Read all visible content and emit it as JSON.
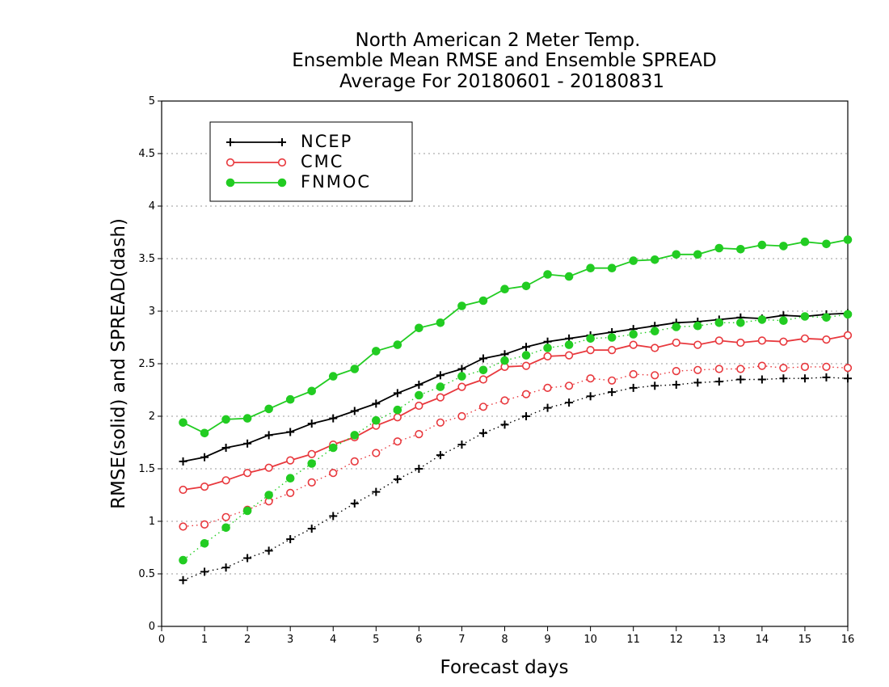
{
  "chart_data": {
    "type": "line",
    "title": [
      "North American 2 Meter Temp.",
      "Ensemble Mean RMSE and Ensemble SPREAD",
      "Average For 20180601 - 20180831"
    ],
    "xlabel": "Forecast days",
    "ylabel": "RMSE(solid) and SPREAD(dash)",
    "xlim": [
      0,
      16
    ],
    "ylim": [
      0,
      5
    ],
    "xticks": [
      "0",
      "1",
      "2",
      "3",
      "4",
      "5",
      "6",
      "7",
      "8",
      "9",
      "10",
      "11",
      "12",
      "13",
      "14",
      "15",
      "16"
    ],
    "yticks": [
      "0",
      "0.5",
      "1",
      "1.5",
      "2",
      "2.5",
      "3",
      "3.5",
      "4",
      "4.5",
      "5"
    ],
    "grid": "horizontal dotted",
    "legend_position": "top-left",
    "x": [
      0.5,
      1,
      1.5,
      2,
      2.5,
      3,
      3.5,
      4,
      4.5,
      5,
      5.5,
      6,
      6.5,
      7,
      7.5,
      8,
      8.5,
      9,
      9.5,
      10,
      10.5,
      11,
      11.5,
      12,
      12.5,
      13,
      13.5,
      14,
      14.5,
      15,
      15.5,
      16
    ],
    "series": [
      {
        "name": "NCEP",
        "metric": "RMSE",
        "line": "solid",
        "color": "#000000",
        "marker": "plus",
        "values": [
          1.57,
          1.61,
          1.7,
          1.74,
          1.82,
          1.85,
          1.93,
          1.98,
          2.05,
          2.12,
          2.22,
          2.3,
          2.39,
          2.45,
          2.55,
          2.59,
          2.66,
          2.71,
          2.74,
          2.77,
          2.8,
          2.83,
          2.86,
          2.89,
          2.9,
          2.92,
          2.94,
          2.93,
          2.96,
          2.95,
          2.97,
          2.98
        ]
      },
      {
        "name": "NCEP",
        "metric": "SPREAD",
        "line": "dash",
        "color": "#000000",
        "marker": "plus",
        "values": [
          0.44,
          0.52,
          0.56,
          0.65,
          0.72,
          0.83,
          0.93,
          1.05,
          1.17,
          1.28,
          1.4,
          1.5,
          1.63,
          1.73,
          1.84,
          1.92,
          2.0,
          2.08,
          2.13,
          2.19,
          2.23,
          2.27,
          2.29,
          2.3,
          2.32,
          2.33,
          2.35,
          2.35,
          2.36,
          2.36,
          2.37,
          2.36
        ]
      },
      {
        "name": "CMC",
        "metric": "RMSE",
        "line": "solid",
        "color": "#e8383d",
        "marker": "open-circle",
        "values": [
          1.3,
          1.33,
          1.39,
          1.46,
          1.51,
          1.58,
          1.64,
          1.73,
          1.8,
          1.91,
          1.99,
          2.1,
          2.18,
          2.28,
          2.35,
          2.47,
          2.48,
          2.57,
          2.58,
          2.63,
          2.63,
          2.68,
          2.65,
          2.7,
          2.68,
          2.72,
          2.7,
          2.72,
          2.71,
          2.74,
          2.73,
          2.77
        ]
      },
      {
        "name": "CMC",
        "metric": "SPREAD",
        "line": "dash",
        "color": "#e8383d",
        "marker": "open-circle",
        "values": [
          0.95,
          0.97,
          1.04,
          1.11,
          1.19,
          1.27,
          1.37,
          1.46,
          1.57,
          1.65,
          1.76,
          1.83,
          1.94,
          2.0,
          2.09,
          2.15,
          2.21,
          2.27,
          2.29,
          2.36,
          2.34,
          2.4,
          2.39,
          2.43,
          2.44,
          2.45,
          2.45,
          2.48,
          2.46,
          2.47,
          2.47,
          2.46
        ]
      },
      {
        "name": "FNMOC",
        "metric": "RMSE",
        "line": "solid",
        "color": "#22cc22",
        "marker": "filled-circle",
        "values": [
          1.94,
          1.84,
          1.97,
          1.98,
          2.07,
          2.16,
          2.24,
          2.38,
          2.45,
          2.62,
          2.68,
          2.84,
          2.89,
          3.05,
          3.1,
          3.21,
          3.24,
          3.35,
          3.33,
          3.41,
          3.41,
          3.48,
          3.49,
          3.54,
          3.54,
          3.6,
          3.59,
          3.63,
          3.62,
          3.66,
          3.64,
          3.68
        ]
      },
      {
        "name": "FNMOC",
        "metric": "SPREAD",
        "line": "dash",
        "color": "#22cc22",
        "marker": "filled-circle",
        "values": [
          0.63,
          0.79,
          0.94,
          1.1,
          1.25,
          1.41,
          1.55,
          1.7,
          1.82,
          1.96,
          2.06,
          2.2,
          2.28,
          2.38,
          2.44,
          2.53,
          2.58,
          2.65,
          2.68,
          2.74,
          2.75,
          2.78,
          2.81,
          2.85,
          2.86,
          2.89,
          2.89,
          2.92,
          2.91,
          2.95,
          2.94,
          2.97
        ]
      }
    ]
  }
}
